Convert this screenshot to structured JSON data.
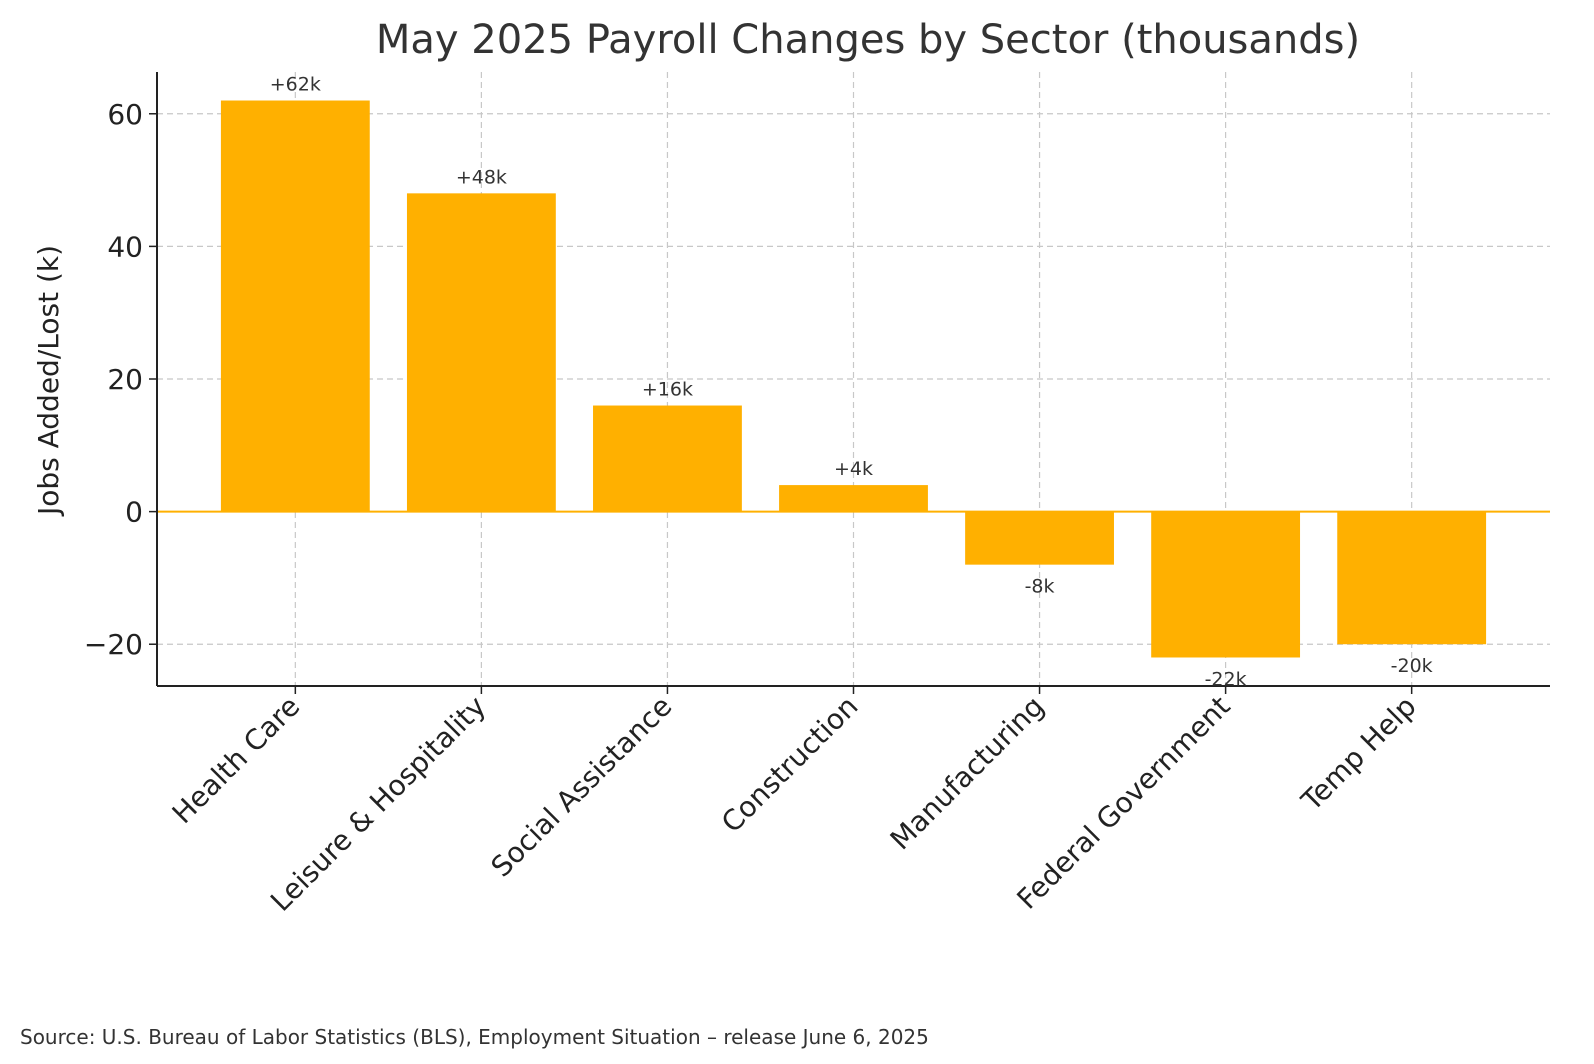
{
  "chart_data": {
    "type": "bar",
    "title": "May 2025 Payroll Changes by Sector (thousands)",
    "xlabel": "",
    "ylabel": "Jobs Added/Lost (k)",
    "categories": [
      "Health Care",
      "Leisure & Hospitality",
      "Social Assistance",
      "Construction",
      "Manufacturing",
      "Federal Government",
      "Temp Help"
    ],
    "values": [
      62,
      48,
      16,
      4,
      -8,
      -22,
      -20
    ],
    "data_labels": [
      "+62k",
      "+48k",
      "+16k",
      "+4k",
      "-8k",
      "-22k",
      "-20k"
    ],
    "ylim": [
      -26.3,
      66.3
    ],
    "yticks": [
      -20,
      0,
      20,
      40,
      60
    ],
    "ytick_labels": [
      "−20",
      "0",
      "20",
      "40",
      "60"
    ],
    "grid": true,
    "bar_color": "#FFB000",
    "zero_line_color": "#FFB000"
  },
  "footer": {
    "source": "Source: U.S. Bureau of Labor Statistics (BLS), Employment Situation – release June 6, 2025"
  }
}
